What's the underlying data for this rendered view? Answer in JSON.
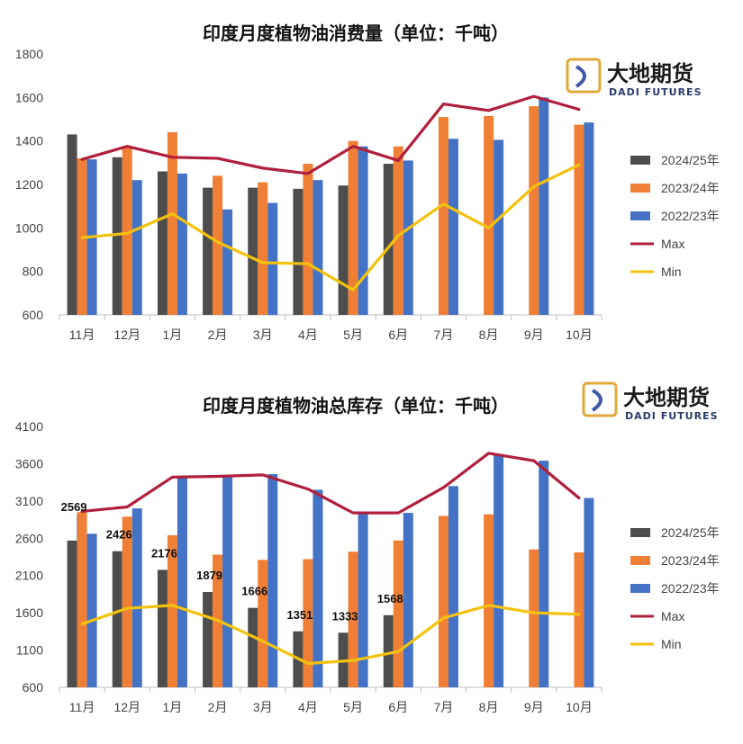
{
  "logo": {
    "cn": "大地期货",
    "en": "DADI FUTURES",
    "colors": {
      "gold": "#e0a93a",
      "blue": "#3f5aa8"
    }
  },
  "colors": {
    "s2024": "#4d4d4d",
    "s2023": "#f07f36",
    "s2022": "#4472c4",
    "max": "#b0203c",
    "min": "#f4c20d"
  },
  "chart_data": [
    {
      "type": "bar",
      "title": "印度月度植物油消费量（单位：千吨）",
      "categories": [
        "11月",
        "12月",
        "1月",
        "2月",
        "3月",
        "4月",
        "5月",
        "6月",
        "7月",
        "8月",
        "9月",
        "10月"
      ],
      "ylim": [
        600,
        1800
      ],
      "yticks": [
        600,
        800,
        1000,
        1200,
        1400,
        1600,
        1800
      ],
      "grid": false,
      "legend_position": "right",
      "series": [
        {
          "name": "2024/25年",
          "kind": "bar",
          "values": [
            1430,
            1325,
            1260,
            1185,
            1185,
            1180,
            1195,
            1295,
            null,
            null,
            null,
            null
          ]
        },
        {
          "name": "2023/24年",
          "kind": "bar",
          "values": [
            1320,
            1370,
            1440,
            1240,
            1210,
            1295,
            1400,
            1375,
            1510,
            1515,
            1560,
            1475
          ]
        },
        {
          "name": "2022/23年",
          "kind": "bar",
          "values": [
            1315,
            1220,
            1250,
            1085,
            1115,
            1220,
            1375,
            1310,
            1410,
            1405,
            1600,
            1485
          ]
        },
        {
          "name": "Max",
          "kind": "line",
          "values": [
            1315,
            1375,
            1325,
            1320,
            1275,
            1250,
            1375,
            1310,
            1570,
            1540,
            1605,
            1545
          ]
        },
        {
          "name": "Min",
          "kind": "line",
          "values": [
            955,
            975,
            1065,
            935,
            840,
            835,
            715,
            965,
            1110,
            1000,
            1190,
            1290
          ]
        }
      ],
      "data_labels": []
    },
    {
      "type": "bar",
      "title": "印度月度植物油总库存（单位：千吨）",
      "categories": [
        "11月",
        "12月",
        "1月",
        "2月",
        "3月",
        "4月",
        "5月",
        "6月",
        "7月",
        "8月",
        "9月",
        "10月"
      ],
      "ylim": [
        600,
        4100
      ],
      "yticks": [
        600,
        1100,
        1600,
        2100,
        2600,
        3100,
        3600,
        4100
      ],
      "grid": false,
      "legend_position": "right",
      "series": [
        {
          "name": "2024/25年",
          "kind": "bar",
          "values": [
            2569,
            2426,
            2176,
            1879,
            1666,
            1351,
            1333,
            1568,
            null,
            null,
            null,
            null
          ]
        },
        {
          "name": "2023/24年",
          "kind": "bar",
          "values": [
            2950,
            2890,
            2640,
            2380,
            2310,
            2320,
            2420,
            2570,
            2900,
            2920,
            2450,
            2410
          ]
        },
        {
          "name": "2022/23年",
          "kind": "bar",
          "values": [
            2660,
            3000,
            3420,
            3440,
            3460,
            3250,
            2950,
            2940,
            3300,
            3720,
            3640,
            3140
          ]
        },
        {
          "name": "Max",
          "kind": "line",
          "values": [
            2960,
            3020,
            3420,
            3430,
            3450,
            3260,
            2940,
            2940,
            3280,
            3740,
            3640,
            3140
          ]
        },
        {
          "name": "Min",
          "kind": "line",
          "values": [
            1450,
            1660,
            1700,
            1500,
            1220,
            920,
            960,
            1080,
            1530,
            1700,
            1600,
            1580
          ]
        }
      ],
      "data_labels": [
        "2569",
        "2426",
        "2176",
        "1879",
        "1666",
        "1351",
        "1333",
        "1568"
      ]
    }
  ]
}
